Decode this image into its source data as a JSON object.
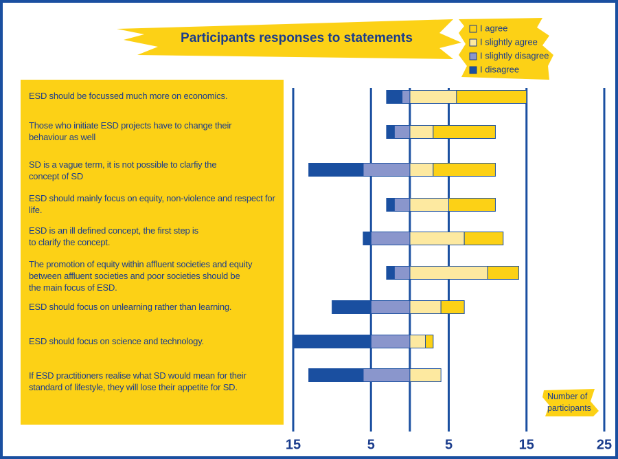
{
  "chart_data": {
    "type": "diverging-bar",
    "title": "Participants responses to statements",
    "annotation": "Number of\nparticipants",
    "categories": [
      "ESD should be focussed much more on economics.",
      "Those who initiate ESD projects have to change their\nbehaviour as well",
      "SD is a vague term, it is not possible to clarfiy the\nconcept of SD",
      "ESD should mainly focus on equity, non-violence and respect for\nlife.",
      "ESD is an ill defined concept, the first step is\nto clarify the concept.",
      "The promotion of equity within affluent societies and equity\nbetween affluent societies and poor societies should be\nthe main focus of ESD.",
      "ESD should focus on unlearning rather than learning.",
      "ESD should focus on science and technology.",
      "If ESD practitioners realise what SD would mean for their\nstandard of lifestyle, they will lose their appetite for SD."
    ],
    "series": [
      {
        "name": "I agree",
        "color": "#fcd116",
        "values": [
          9,
          8,
          8,
          6,
          5,
          4,
          3,
          1,
          0
        ]
      },
      {
        "name": "I slightly agree",
        "color": "#fde9a0",
        "values": [
          6,
          3,
          3,
          5,
          7,
          10,
          4,
          2,
          4
        ]
      },
      {
        "name": "I slightly disagree",
        "color": "#8a96cc",
        "values": [
          1,
          2,
          6,
          2,
          5,
          2,
          5,
          5,
          6
        ]
      },
      {
        "name": "I disagree",
        "color": "#1a4fa0",
        "values": [
          2,
          1,
          7,
          1,
          1,
          1,
          5,
          10,
          7
        ]
      }
    ],
    "xlim": [
      -15,
      25
    ],
    "xticks": [
      {
        "value": -15,
        "label": "15"
      },
      {
        "value": -5,
        "label": "5"
      },
      5,
      15,
      25
    ],
    "grid": true
  }
}
